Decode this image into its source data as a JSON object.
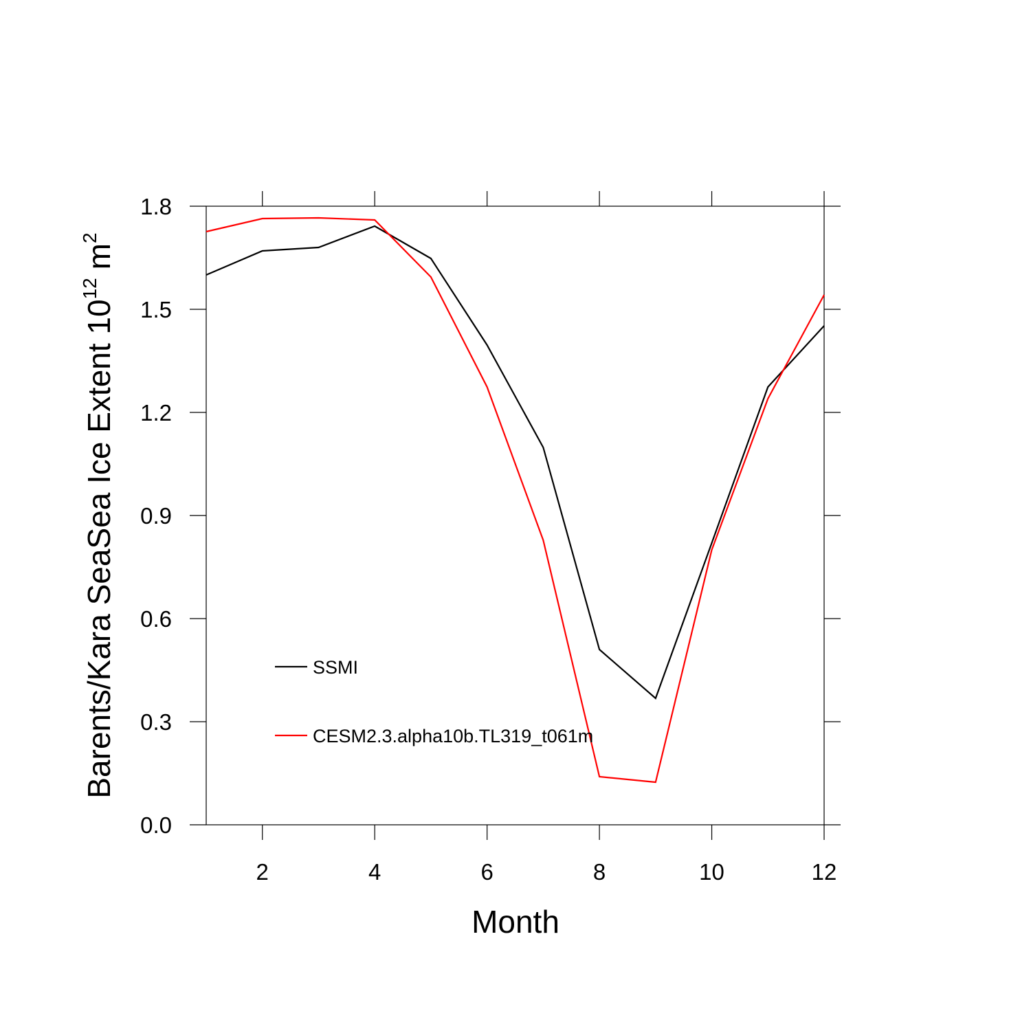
{
  "chart_data": {
    "type": "line",
    "x_label": "Month",
    "y_label": [
      "Barents/Kara SeaSea Ice Extent 10",
      "12",
      "m",
      "2"
    ],
    "x": [
      1,
      2,
      3,
      4,
      5,
      6,
      7,
      8,
      9,
      10,
      11,
      12
    ],
    "series": [
      {
        "name": "SSMI",
        "color": "#000000",
        "values": [
          1.6,
          1.67,
          1.68,
          1.742,
          1.648,
          1.396,
          1.098,
          0.51,
          0.368,
          0.82,
          1.274,
          1.452
        ]
      },
      {
        "name": "CESM2.3.alpha10b.TL319_t061m",
        "color": "#ff0000",
        "values": [
          1.726,
          1.764,
          1.766,
          1.76,
          1.594,
          1.274,
          0.828,
          0.14,
          0.124,
          0.8,
          1.24,
          1.542
        ]
      }
    ],
    "xlim": [
      1,
      12
    ],
    "xticks": [
      2,
      4,
      6,
      8,
      10,
      12
    ],
    "ylim": [
      0,
      1.8
    ],
    "yticks": [
      {
        "value": 0,
        "label": "0.0"
      },
      0.3,
      0.6,
      0.9,
      1.2,
      1.5,
      1.8
    ]
  }
}
